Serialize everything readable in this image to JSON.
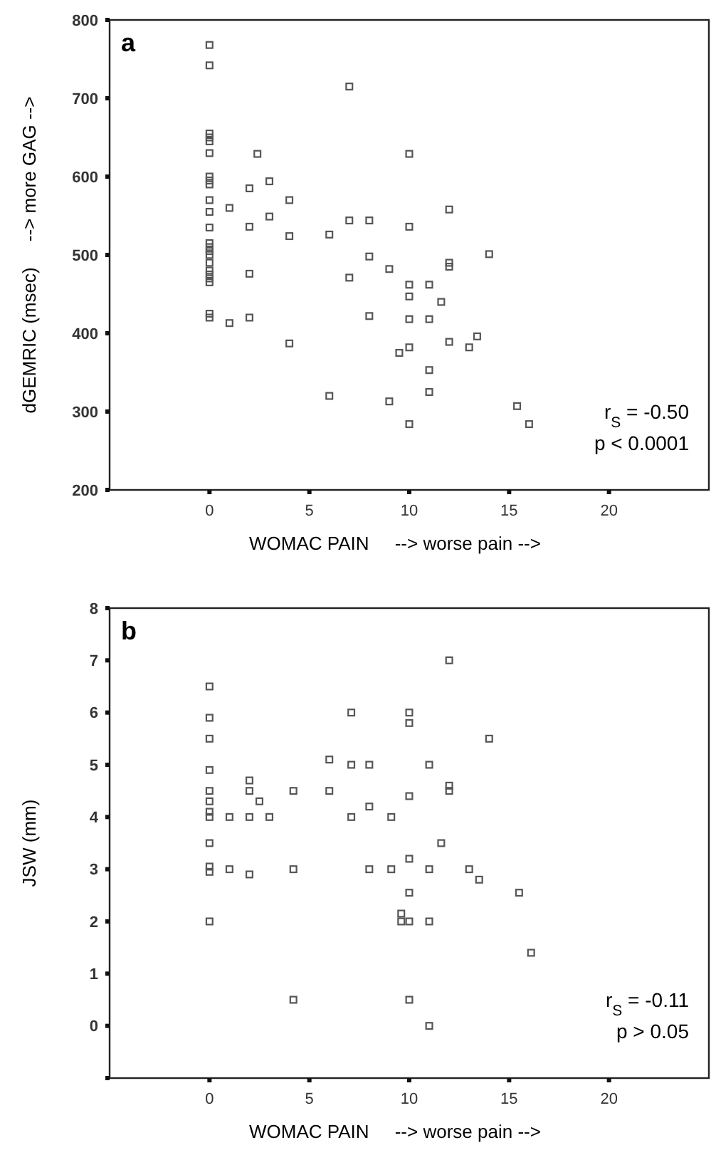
{
  "chart_data": [
    {
      "type": "scatter",
      "title": "a",
      "xlabel": "WOMAC PAIN     --> worse pain -->",
      "ylabel": "dGEMRIC (msec)     --> more GAG -->",
      "xlim": [
        -5,
        25
      ],
      "xticks": [
        0,
        5,
        10,
        15,
        20
      ],
      "ylim": [
        200,
        800
      ],
      "yticks": [
        200,
        300,
        400,
        500,
        600,
        700,
        800
      ],
      "marker": "square",
      "grid": false,
      "annotations": [
        "r$_{S}$ = -0.50",
        "p < 0.0001"
      ],
      "series": [
        {
          "color": "#555555",
          "x": [
            0,
            0,
            0,
            0,
            0,
            0,
            0,
            0,
            0,
            0,
            0,
            0,
            0,
            0,
            0,
            0,
            0,
            0,
            0,
            0,
            0,
            0,
            0,
            1,
            2,
            2,
            2,
            2.4,
            3,
            3,
            4,
            4,
            6,
            7,
            7,
            7,
            8,
            8,
            9,
            10,
            10,
            10,
            11,
            12,
            12,
            12,
            14,
            1,
            2,
            4,
            6,
            8,
            9,
            10,
            10,
            9.5,
            10,
            10,
            11,
            11,
            11,
            11.6,
            12,
            13,
            13.4,
            15.4,
            16
          ],
          "values": [
            768,
            742,
            655,
            650,
            645,
            630,
            600,
            595,
            590,
            570,
            555,
            535,
            515,
            510,
            505,
            500,
            490,
            480,
            475,
            470,
            465,
            425,
            420,
            560,
            585,
            536,
            476,
            629,
            594,
            549,
            570,
            524,
            526,
            715,
            544,
            471,
            544,
            498,
            482,
            629,
            536,
            462,
            462,
            558,
            490,
            485,
            501,
            413,
            420,
            387,
            320,
            422,
            313,
            447,
            418,
            375,
            382,
            284,
            418,
            353,
            325,
            440,
            389,
            382,
            396,
            307,
            284
          ]
        }
      ]
    },
    {
      "type": "scatter",
      "title": "b",
      "xlabel": "WOMAC PAIN     --> worse pain -->",
      "ylabel": "JSW (mm)",
      "xlim": [
        -5,
        25
      ],
      "xticks": [
        0,
        5,
        10,
        15,
        20
      ],
      "ylim": [
        -1,
        8
      ],
      "yticks": [
        {
          "value": -1,
          "label": null
        },
        0,
        1,
        2,
        3,
        4,
        5,
        6,
        7,
        8
      ],
      "marker": "square",
      "grid": false,
      "annotations": [
        "r$_{S}$ = -0.11",
        "p > 0.05"
      ],
      "series": [
        {
          "color": "#555555",
          "x": [
            0,
            0,
            0,
            0,
            0,
            0,
            0,
            0,
            0,
            0,
            0,
            0,
            1,
            1,
            2,
            2,
            2,
            2,
            2.5,
            3,
            4.2,
            4.2,
            4.2,
            6,
            6,
            7.1,
            7.1,
            7.1,
            8,
            8,
            8,
            9.1,
            9.1,
            10,
            10,
            10,
            10,
            10,
            9.6,
            9.6,
            10,
            10,
            11,
            11,
            11,
            11,
            12,
            12,
            12,
            14,
            11.6,
            13,
            13.5,
            15.5,
            16.1
          ],
          "values": [
            6.5,
            5.9,
            5.5,
            4.9,
            4.5,
            4.3,
            4.1,
            4.0,
            3.5,
            3.05,
            2.95,
            2.0,
            4.0,
            3.0,
            4.7,
            4.5,
            4.0,
            2.9,
            4.3,
            4.0,
            4.5,
            3.0,
            0.5,
            5.1,
            4.5,
            6.0,
            5.0,
            4.0,
            5.0,
            4.2,
            3.0,
            4.0,
            3.0,
            6.0,
            5.8,
            3.2,
            2.55,
            2.0,
            2.15,
            2.0,
            0.5,
            4.4,
            5.0,
            3.0,
            2.0,
            0.0,
            7.0,
            4.6,
            4.5,
            5.5,
            3.5,
            3.0,
            2.8,
            2.55,
            1.4
          ]
        }
      ]
    }
  ]
}
